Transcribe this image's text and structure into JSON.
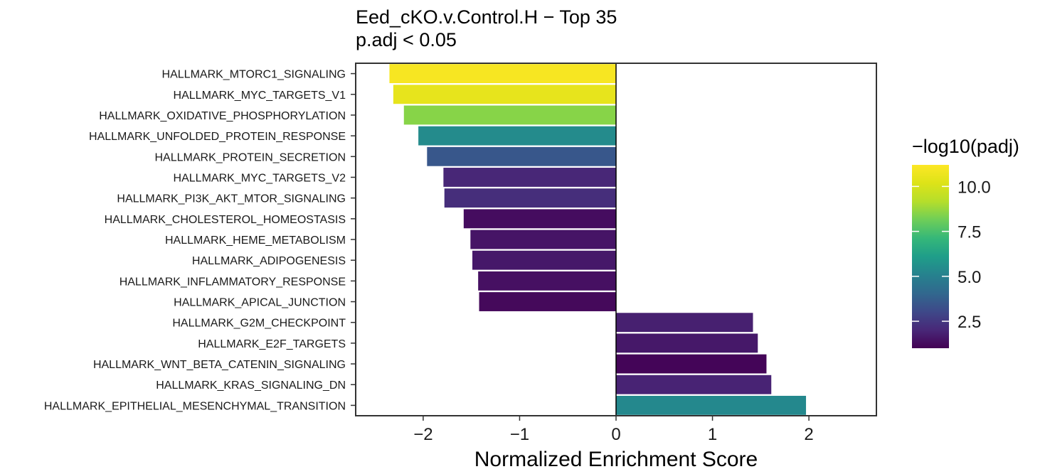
{
  "chart_data": {
    "type": "bar",
    "orientation": "horizontal",
    "title": "Eed_cKO.v.Control.H − Top 35",
    "subtitle": "p.adj < 0.05",
    "xlabel": "Normalized Enrichment Score",
    "ylabel": "",
    "xlim": [
      -2.7,
      2.7
    ],
    "x_ticks": [
      -2,
      -1,
      0,
      1,
      2
    ],
    "x_tick_labels": [
      "−2",
      "−1",
      "0",
      "1",
      "2"
    ],
    "grid": false,
    "categories": [
      "HALLMARK_MTORC1_SIGNALING",
      "HALLMARK_MYC_TARGETS_V1",
      "HALLMARK_OXIDATIVE_PHOSPHORYLATION",
      "HALLMARK_UNFOLDED_PROTEIN_RESPONSE",
      "HALLMARK_PROTEIN_SECRETION",
      "HALLMARK_MYC_TARGETS_V2",
      "HALLMARK_PI3K_AKT_MTOR_SIGNALING",
      "HALLMARK_CHOLESTEROL_HOMEOSTASIS",
      "HALLMARK_HEME_METABOLISM",
      "HALLMARK_ADIPOGENESIS",
      "HALLMARK_INFLAMMATORY_RESPONSE",
      "HALLMARK_APICAL_JUNCTION",
      "HALLMARK_G2M_CHECKPOINT",
      "HALLMARK_E2F_TARGETS",
      "HALLMARK_WNT_BETA_CATENIN_SIGNALING",
      "HALLMARK_KRAS_SIGNALING_DN",
      "HALLMARK_EPITHELIAL_MESENCHYMAL_TRANSITION"
    ],
    "values": [
      -2.35,
      -2.31,
      -2.2,
      -2.05,
      -1.96,
      -1.79,
      -1.78,
      -1.58,
      -1.51,
      -1.49,
      -1.43,
      -1.42,
      1.42,
      1.47,
      1.56,
      1.61,
      1.97
    ],
    "color_values": [
      11.0,
      10.5,
      8.5,
      5.4,
      3.5,
      2.0,
      2.2,
      1.3,
      1.5,
      1.6,
      1.4,
      1.2,
      1.8,
      1.6,
      1.1,
      1.9,
      5.3
    ],
    "colorbar": {
      "title": "−log10(padj)",
      "min": 1.0,
      "max": 11.2,
      "ticks": [
        2.5,
        5.0,
        7.5,
        10.0
      ],
      "tick_labels": [
        "2.5",
        "5.0",
        "7.5",
        "10.0"
      ],
      "colormap": "viridis",
      "placement": "right"
    }
  }
}
